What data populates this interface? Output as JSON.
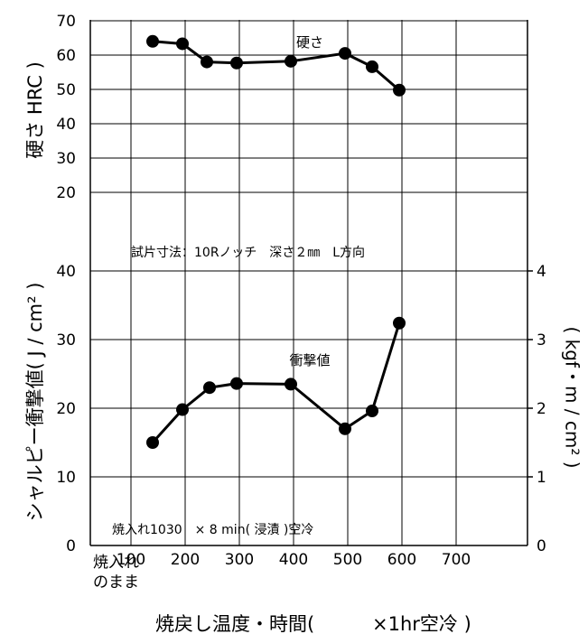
{
  "chart_data": {
    "type": "line",
    "x_ticks": [
      "100",
      "200",
      "300",
      "400",
      "500",
      "600",
      "700"
    ],
    "x_first_label": [
      "焼入れ",
      "のまま"
    ],
    "xlabel_parts": [
      "焼戻し温度・時間(",
      "×1hr空冷 )"
    ],
    "hardness": {
      "name": "硬さ",
      "ylabel": "硬さ HRC )",
      "ticks": [
        "20",
        "30",
        "40",
        "50",
        "60",
        "70"
      ],
      "ylim": [
        20,
        70
      ],
      "points": [
        [
          140,
          64
        ],
        [
          195,
          63.3
        ],
        [
          240,
          58
        ],
        [
          295,
          57.7
        ],
        [
          395,
          58.2
        ],
        [
          495,
          60.5
        ],
        [
          545,
          56.6
        ],
        [
          595,
          49.8
        ]
      ]
    },
    "impact": {
      "name": "衝撃値",
      "ylabel": "シャルピー衝撃値( J / cm² )",
      "ylabel_right": "( kgf・m / cm² )",
      "ticks": [
        "0",
        "10",
        "20",
        "30",
        "40"
      ],
      "ticks_right": [
        "0",
        "1",
        "2",
        "3",
        "4"
      ],
      "ylim": [
        0,
        40
      ],
      "points": [
        [
          140,
          15
        ],
        [
          195,
          19.8
        ],
        [
          245,
          23
        ],
        [
          295,
          23.6
        ],
        [
          395,
          23.5
        ],
        [
          495,
          17
        ],
        [
          545,
          19.6
        ],
        [
          595,
          32.4
        ]
      ]
    },
    "annotations": {
      "specimen": "試片寸法：10Rノッチ　深さ２㎜　L方向",
      "quench": "焼入れ1030　× 8 min( 浸漬 )空冷"
    },
    "grid": true
  }
}
